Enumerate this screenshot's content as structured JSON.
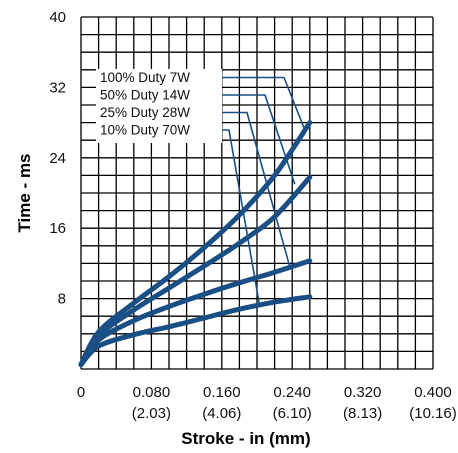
{
  "chart_data": {
    "type": "line",
    "title": "",
    "xlabel": "Stroke - in (mm)",
    "ylabel": "Time - ms",
    "xlim": [
      0,
      0.4
    ],
    "ylim": [
      0,
      40
    ],
    "grid": true,
    "x_ticks": [
      {
        "value": 0,
        "label": "0",
        "sublabel": ""
      },
      {
        "value": 0.08,
        "label": "0.080",
        "sublabel": "(2.03)"
      },
      {
        "value": 0.16,
        "label": "0.160",
        "sublabel": "(4.06)"
      },
      {
        "value": 0.24,
        "label": "0.240",
        "sublabel": "(6.10)"
      },
      {
        "value": 0.32,
        "label": "0.320",
        "sublabel": "(8.13)"
      },
      {
        "value": 0.4,
        "label": "0.400",
        "sublabel": "(10.16)"
      }
    ],
    "y_ticks": [
      {
        "value": 8,
        "label": "8"
      },
      {
        "value": 16,
        "label": "16"
      },
      {
        "value": 24,
        "label": "24"
      },
      {
        "value": 32,
        "label": "32"
      },
      {
        "value": 40,
        "label": "40"
      }
    ],
    "legend_placement": "top-left",
    "series": [
      {
        "name": "100% Duty 7W",
        "points": [
          [
            0,
            0.5
          ],
          [
            0.02,
            4.2
          ],
          [
            0.06,
            7.5
          ],
          [
            0.1,
            10.5
          ],
          [
            0.14,
            13.8
          ],
          [
            0.18,
            17.5
          ],
          [
            0.22,
            22
          ],
          [
            0.26,
            28
          ]
        ],
        "label_target": [
          0.255,
          27
        ]
      },
      {
        "name": "50% Duty 14W",
        "points": [
          [
            0,
            0.5
          ],
          [
            0.02,
            3.8
          ],
          [
            0.06,
            6.7
          ],
          [
            0.1,
            9.2
          ],
          [
            0.14,
            11.7
          ],
          [
            0.18,
            14.3
          ],
          [
            0.22,
            17.3
          ],
          [
            0.26,
            21.8
          ]
        ],
        "label_target": [
          0.243,
          21
        ]
      },
      {
        "name": "25% Duty 28W",
        "points": [
          [
            0,
            0.5
          ],
          [
            0.02,
            3.3
          ],
          [
            0.06,
            5.5
          ],
          [
            0.1,
            7.1
          ],
          [
            0.14,
            8.5
          ],
          [
            0.18,
            9.8
          ],
          [
            0.22,
            11
          ],
          [
            0.26,
            12.3
          ]
        ],
        "label_target": [
          0.237,
          11.7
        ]
      },
      {
        "name": "10% Duty 70W",
        "points": [
          [
            0,
            0.5
          ],
          [
            0.02,
            2.6
          ],
          [
            0.06,
            3.9
          ],
          [
            0.1,
            4.8
          ],
          [
            0.14,
            5.8
          ],
          [
            0.18,
            6.8
          ],
          [
            0.22,
            7.6
          ],
          [
            0.26,
            8.2
          ]
        ],
        "label_target": [
          0.203,
          7.2
        ]
      }
    ]
  }
}
